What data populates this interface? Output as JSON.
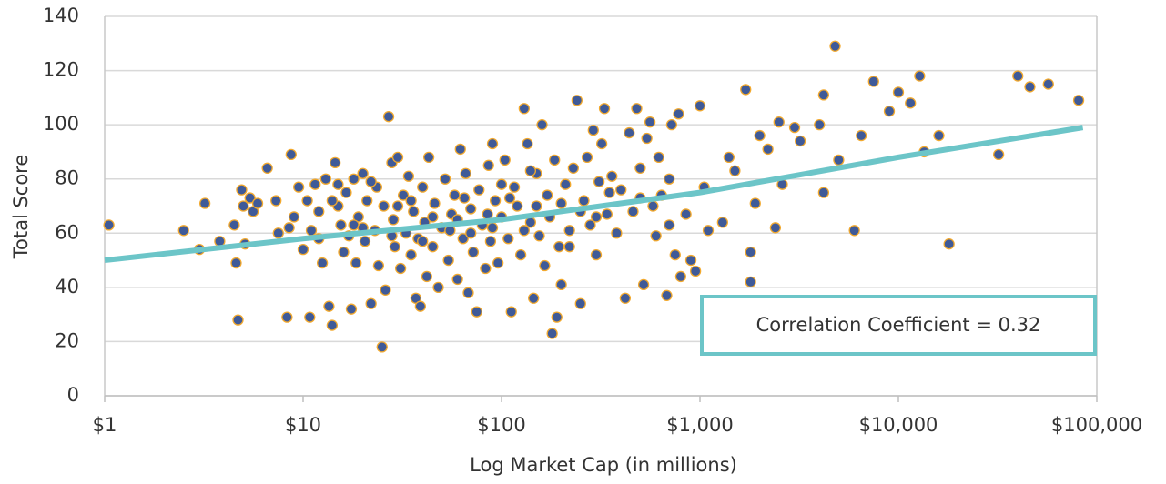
{
  "chart_data": {
    "type": "scatter",
    "xlabel": "Log Market Cap (in millions)",
    "ylabel": "Total Score",
    "xscale": "log",
    "xlim": [
      1,
      100000
    ],
    "ylim": [
      0,
      140
    ],
    "xticks": [
      {
        "value": 1,
        "label": "$1"
      },
      {
        "value": 10,
        "label": "$10"
      },
      {
        "value": 100,
        "label": "$100"
      },
      {
        "value": 1000,
        "label": "$1,000"
      },
      {
        "value": 10000,
        "label": "$10,000"
      },
      {
        "value": 100000,
        "label": "$100,000"
      }
    ],
    "yticks": [
      0,
      20,
      40,
      60,
      80,
      100,
      120,
      140
    ],
    "grid": true,
    "annotation": "Correlation Coefficient = 0.32",
    "series": [
      {
        "color": "#3f5a98",
        "edgecolor": "#f2a92e",
        "x": [
          1.05,
          2.5,
          3,
          3.2,
          3.8,
          4.5,
          4.6,
          4.7,
          4.9,
          5,
          5.1,
          5.4,
          5.6,
          5.9,
          6.6,
          7.3,
          7.5,
          8.3,
          8.7,
          8.5,
          9,
          9.5,
          10,
          10.5,
          10.8,
          11,
          11.5,
          12,
          12.5,
          13,
          13.5,
          14,
          14.5,
          15,
          15.5,
          16,
          16.5,
          17,
          17.5,
          18,
          18.5,
          19,
          20,
          20.5,
          21,
          22,
          23,
          23.5,
          24,
          25,
          25.5,
          26,
          27,
          28,
          28.5,
          29,
          30,
          31,
          32,
          33,
          34,
          35,
          36,
          37,
          38,
          39,
          40,
          41,
          42,
          43,
          45,
          46,
          48,
          50,
          52,
          54,
          56,
          58,
          60,
          62,
          64,
          66,
          68,
          70,
          72,
          75,
          77,
          80,
          83,
          86,
          88,
          90,
          93,
          96,
          100,
          104,
          108,
          112,
          116,
          120,
          125,
          130,
          135,
          140,
          145,
          150,
          155,
          160,
          165,
          170,
          175,
          180,
          185,
          190,
          195,
          200,
          210,
          220,
          230,
          240,
          250,
          260,
          270,
          280,
          290,
          300,
          310,
          320,
          330,
          340,
          360,
          380,
          400,
          420,
          440,
          460,
          480,
          500,
          520,
          540,
          560,
          580,
          600,
          620,
          640,
          680,
          700,
          720,
          750,
          780,
          800,
          850,
          900,
          950,
          1000,
          1050,
          1100,
          1300,
          1400,
          1500,
          1700,
          1800,
          1800,
          1900,
          2000,
          2200,
          2400,
          2500,
          2600,
          3000,
          3200,
          4000,
          4200,
          4200,
          4800,
          5000,
          6000,
          6500,
          7500,
          9000,
          10000,
          11500,
          12800,
          13500,
          16000,
          18000,
          32000,
          40000,
          46000,
          57000,
          81000,
          15,
          22,
          35,
          55,
          65,
          85,
          110,
          150,
          250,
          12,
          18,
          28,
          40,
          60,
          90,
          130,
          200,
          300,
          500,
          14,
          20,
          30,
          45,
          70,
          100,
          140,
          220,
          350,
          700
        ],
        "values": [
          63,
          61,
          54,
          71,
          57,
          63,
          49,
          28,
          76,
          70,
          56,
          73,
          68,
          71,
          84,
          72,
          60,
          29,
          89,
          62,
          66,
          77,
          54,
          72,
          29,
          61,
          78,
          68,
          49,
          80,
          33,
          26,
          86,
          70,
          63,
          53,
          75,
          59,
          32,
          80,
          49,
          66,
          82,
          57,
          72,
          34,
          61,
          77,
          48,
          18,
          70,
          39,
          103,
          86,
          65,
          55,
          88,
          47,
          74,
          60,
          81,
          52,
          68,
          36,
          58,
          33,
          77,
          64,
          44,
          88,
          55,
          71,
          40,
          62,
          80,
          50,
          67,
          74,
          43,
          91,
          58,
          82,
          38,
          69,
          53,
          31,
          76,
          63,
          47,
          85,
          57,
          93,
          72,
          49,
          66,
          87,
          58,
          31,
          77,
          70,
          52,
          106,
          93,
          64,
          36,
          82,
          59,
          100,
          48,
          74,
          66,
          23,
          87,
          29,
          55,
          41,
          78,
          61,
          84,
          109,
          34,
          72,
          88,
          63,
          98,
          52,
          79,
          93,
          106,
          67,
          81,
          60,
          76,
          36,
          97,
          68,
          106,
          84,
          41,
          95,
          101,
          70,
          59,
          88,
          74,
          37,
          63,
          100,
          52,
          104,
          44,
          67,
          50,
          46,
          107,
          77,
          61,
          64,
          88,
          83,
          113,
          42,
          53,
          71,
          96,
          91,
          62,
          101,
          78,
          99,
          94,
          100,
          111,
          75,
          129,
          87,
          61,
          96,
          116,
          105,
          112,
          108,
          118,
          90,
          96,
          56,
          89,
          118,
          114,
          115,
          109,
          78,
          79,
          72,
          61,
          73,
          67,
          73,
          70,
          68,
          58,
          63,
          59,
          57,
          65,
          62,
          61,
          71,
          66,
          73,
          72,
          62,
          70,
          66,
          60,
          78,
          83,
          55,
          75,
          80
        ]
      }
    ],
    "trendline": {
      "color": "#6cc5c8",
      "x": [
        1,
        10,
        100,
        1000,
        10000,
        85000
      ],
      "values": [
        50,
        58,
        65,
        75,
        88,
        99
      ]
    }
  }
}
